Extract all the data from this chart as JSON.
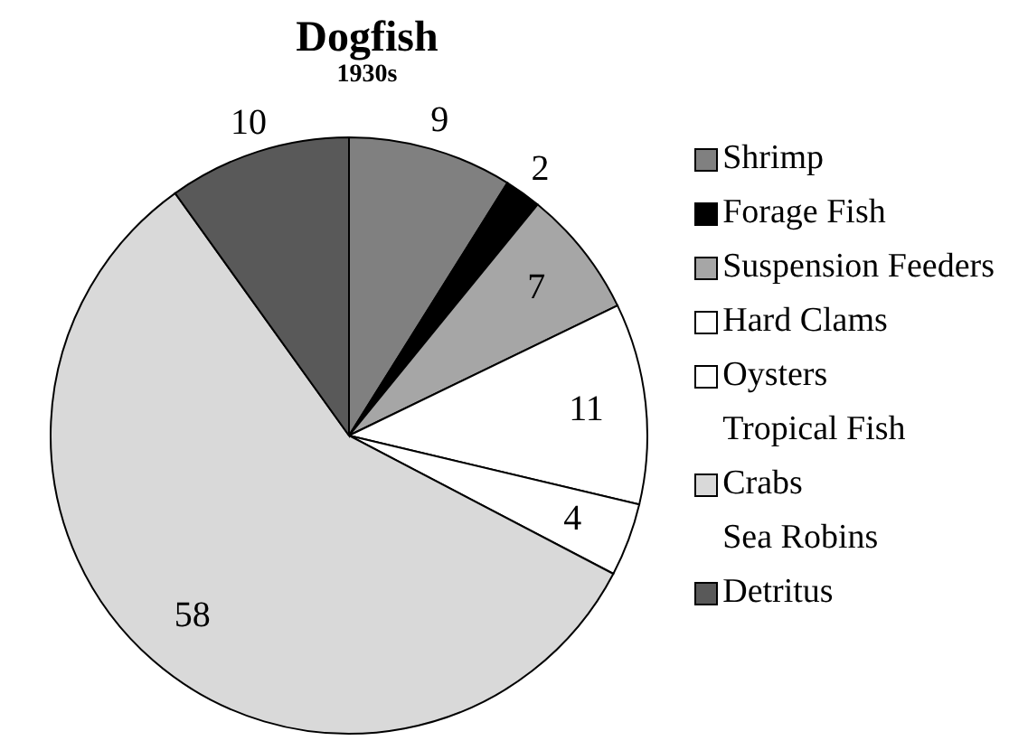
{
  "chart_data": {
    "type": "pie",
    "title": "Dogfish",
    "subtitle": "1930s",
    "categories": [
      "Shrimp",
      "Forage Fish",
      "Suspension Feeders",
      "Hard Clams",
      "Oysters",
      "Tropical Fish",
      "Crabs",
      "Sea Robins",
      "Detritus"
    ],
    "values": [
      9,
      2,
      7,
      11,
      4,
      0,
      58,
      0,
      10
    ],
    "colors": [
      "#808080",
      "#000000",
      "#a6a6a6",
      "#ffffff",
      "#ffffff",
      "#ffffff",
      "#d9d9d9",
      "#ffffff",
      "#595959"
    ],
    "value_labels": [
      "9",
      "2",
      "7",
      "11",
      "4",
      null,
      "58",
      null,
      "10"
    ],
    "legend": "right"
  }
}
